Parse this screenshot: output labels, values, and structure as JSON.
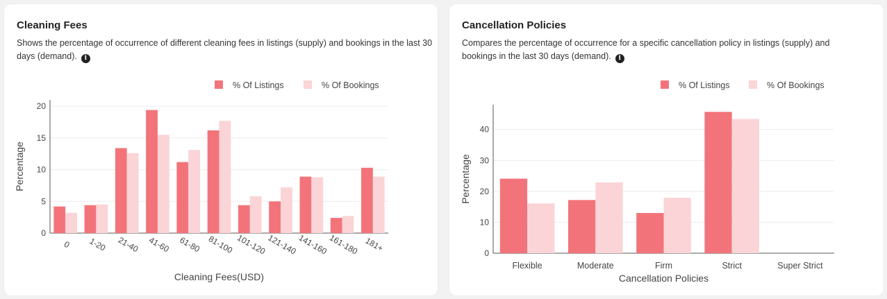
{
  "cards": {
    "cleaning": {
      "title": "Cleaning Fees",
      "description": "Shows the percentage of occurrence of different cleaning fees in listings (supply) and bookings in the last 30 days (demand)."
    },
    "cancel": {
      "title": "Cancellation Policies",
      "description": "Compares the percentage of occurrence for a specific cancellation policy in listings (supply) and bookings in the last 30 days (demand)."
    }
  },
  "info_icon": "info-icon",
  "colors": {
    "listings": "#f2747a",
    "bookings": "#fad4d6",
    "grid": "#ececec",
    "axis": "#555555",
    "text": "#444444"
  },
  "chart_data": [
    {
      "type": "bar",
      "title": "",
      "xlabel": "Cleaning Fees(USD)",
      "ylabel": "Percentage",
      "categories": [
        "0",
        "1-20",
        "21-40",
        "41-60",
        "61-80",
        "81-100",
        "101-120",
        "121-140",
        "141-160",
        "161-180",
        "181+"
      ],
      "series": [
        {
          "name": "% Of Listings",
          "values": [
            4.2,
            4.4,
            13.4,
            19.4,
            11.2,
            16.2,
            4.4,
            5.0,
            8.9,
            2.4,
            10.3
          ]
        },
        {
          "name": "% Of Bookings",
          "values": [
            3.2,
            4.5,
            12.6,
            15.5,
            13.1,
            17.7,
            5.8,
            7.2,
            8.8,
            2.7,
            8.9
          ]
        }
      ],
      "ylim": [
        0,
        21
      ],
      "yticks": [
        0,
        5,
        10,
        15,
        20
      ],
      "grid": true,
      "legend": "top-right"
    },
    {
      "type": "bar",
      "title": "",
      "xlabel": "Cancellation Policies",
      "ylabel": "Percentage",
      "categories": [
        "Flexible",
        "Moderate",
        "Firm",
        "Strict",
        "Super Strict"
      ],
      "series": [
        {
          "name": "% Of Listings",
          "values": [
            24.1,
            17.2,
            13.0,
            45.7,
            0
          ]
        },
        {
          "name": "% Of Bookings",
          "values": [
            16.1,
            22.9,
            17.9,
            43.4,
            0
          ]
        }
      ],
      "ylim": [
        0,
        48
      ],
      "yticks": [
        0,
        10,
        20,
        30,
        40
      ],
      "grid": true,
      "legend": "top-right"
    }
  ]
}
